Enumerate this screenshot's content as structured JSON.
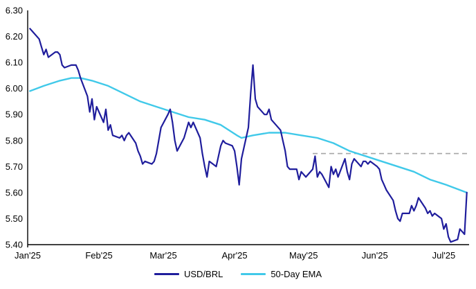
{
  "figure": {
    "background": "#ffffff"
  },
  "chart_data": {
    "type": "line",
    "title": "",
    "xlabel": "",
    "ylabel": "",
    "grid": false,
    "x_axis": {
      "domain": [
        "2025-01-01",
        "2025-07-12"
      ],
      "ticks": [
        {
          "label": "Jan'25",
          "date": "2025-01-01"
        },
        {
          "label": "Feb'25",
          "date": "2025-02-01"
        },
        {
          "label": "Mar'25",
          "date": "2025-03-01"
        },
        {
          "label": "Apr'25",
          "date": "2025-04-01"
        },
        {
          "label": "May'25",
          "date": "2025-05-01"
        },
        {
          "label": "Jun'25",
          "date": "2025-06-01"
        },
        {
          "label": "Jul'25",
          "date": "2025-07-01"
        }
      ]
    },
    "y_axis": {
      "min": 5.4,
      "max": 6.3,
      "step": 0.1,
      "ticks": [
        "6.30",
        "6.20",
        "6.10",
        "6.00",
        "5.90",
        "5.80",
        "5.70",
        "5.60",
        "5.50",
        "5.40"
      ]
    },
    "series": [
      {
        "name": "USD/BRL",
        "color": "#1f1d9c",
        "width": 2.2,
        "points": [
          [
            "2025-01-02",
            6.23
          ],
          [
            "2025-01-03",
            6.22
          ],
          [
            "2025-01-06",
            6.19
          ],
          [
            "2025-01-07",
            6.16
          ],
          [
            "2025-01-08",
            6.13
          ],
          [
            "2025-01-09",
            6.15
          ],
          [
            "2025-01-10",
            6.12
          ],
          [
            "2025-01-13",
            6.14
          ],
          [
            "2025-01-14",
            6.14
          ],
          [
            "2025-01-15",
            6.13
          ],
          [
            "2025-01-16",
            6.09
          ],
          [
            "2025-01-17",
            6.08
          ],
          [
            "2025-01-20",
            6.09
          ],
          [
            "2025-01-21",
            6.09
          ],
          [
            "2025-01-22",
            6.09
          ],
          [
            "2025-01-23",
            6.07
          ],
          [
            "2025-01-24",
            6.04
          ],
          [
            "2025-01-27",
            5.97
          ],
          [
            "2025-01-28",
            5.91
          ],
          [
            "2025-01-29",
            5.96
          ],
          [
            "2025-01-30",
            5.88
          ],
          [
            "2025-01-31",
            5.93
          ],
          [
            "2025-02-03",
            5.87
          ],
          [
            "2025-02-04",
            5.92
          ],
          [
            "2025-02-05",
            5.84
          ],
          [
            "2025-02-06",
            5.86
          ],
          [
            "2025-02-07",
            5.82
          ],
          [
            "2025-02-10",
            5.81
          ],
          [
            "2025-02-11",
            5.82
          ],
          [
            "2025-02-12",
            5.8
          ],
          [
            "2025-02-13",
            5.82
          ],
          [
            "2025-02-14",
            5.83
          ],
          [
            "2025-02-17",
            5.79
          ],
          [
            "2025-02-18",
            5.76
          ],
          [
            "2025-02-19",
            5.74
          ],
          [
            "2025-02-20",
            5.71
          ],
          [
            "2025-02-21",
            5.72
          ],
          [
            "2025-02-24",
            5.71
          ],
          [
            "2025-02-25",
            5.72
          ],
          [
            "2025-02-26",
            5.75
          ],
          [
            "2025-02-27",
            5.8
          ],
          [
            "2025-02-28",
            5.85
          ],
          [
            "2025-03-03",
            5.9
          ],
          [
            "2025-03-04",
            5.92
          ],
          [
            "2025-03-05",
            5.87
          ],
          [
            "2025-03-06",
            5.8
          ],
          [
            "2025-03-07",
            5.76
          ],
          [
            "2025-03-10",
            5.81
          ],
          [
            "2025-03-11",
            5.84
          ],
          [
            "2025-03-12",
            5.87
          ],
          [
            "2025-03-13",
            5.85
          ],
          [
            "2025-03-14",
            5.87
          ],
          [
            "2025-03-17",
            5.81
          ],
          [
            "2025-03-18",
            5.75
          ],
          [
            "2025-03-19",
            5.7
          ],
          [
            "2025-03-20",
            5.66
          ],
          [
            "2025-03-21",
            5.72
          ],
          [
            "2025-03-24",
            5.7
          ],
          [
            "2025-03-25",
            5.74
          ],
          [
            "2025-03-26",
            5.78
          ],
          [
            "2025-03-27",
            5.8
          ],
          [
            "2025-03-28",
            5.79
          ],
          [
            "2025-03-31",
            5.78
          ],
          [
            "2025-04-01",
            5.76
          ],
          [
            "2025-04-02",
            5.7
          ],
          [
            "2025-04-03",
            5.63
          ],
          [
            "2025-04-04",
            5.73
          ],
          [
            "2025-04-07",
            5.85
          ],
          [
            "2025-04-08",
            5.98
          ],
          [
            "2025-04-09",
            6.09
          ],
          [
            "2025-04-10",
            5.96
          ],
          [
            "2025-04-11",
            5.93
          ],
          [
            "2025-04-14",
            5.9
          ],
          [
            "2025-04-15",
            5.9
          ],
          [
            "2025-04-16",
            5.92
          ],
          [
            "2025-04-17",
            5.88
          ],
          [
            "2025-04-21",
            5.84
          ],
          [
            "2025-04-22",
            5.8
          ],
          [
            "2025-04-23",
            5.76
          ],
          [
            "2025-04-24",
            5.7
          ],
          [
            "2025-04-25",
            5.69
          ],
          [
            "2025-04-28",
            5.69
          ],
          [
            "2025-04-29",
            5.65
          ],
          [
            "2025-04-30",
            5.68
          ],
          [
            "2025-05-02",
            5.66
          ],
          [
            "2025-05-05",
            5.69
          ],
          [
            "2025-05-06",
            5.74
          ],
          [
            "2025-05-07",
            5.66
          ],
          [
            "2025-05-08",
            5.68
          ],
          [
            "2025-05-09",
            5.67
          ],
          [
            "2025-05-12",
            5.62
          ],
          [
            "2025-05-13",
            5.7
          ],
          [
            "2025-05-14",
            5.67
          ],
          [
            "2025-05-15",
            5.69
          ],
          [
            "2025-05-16",
            5.66
          ],
          [
            "2025-05-19",
            5.73
          ],
          [
            "2025-05-20",
            5.68
          ],
          [
            "2025-05-21",
            5.65
          ],
          [
            "2025-05-22",
            5.71
          ],
          [
            "2025-05-23",
            5.73
          ],
          [
            "2025-05-26",
            5.7
          ],
          [
            "2025-05-27",
            5.72
          ],
          [
            "2025-05-28",
            5.72
          ],
          [
            "2025-05-29",
            5.71
          ],
          [
            "2025-05-30",
            5.72
          ],
          [
            "2025-06-02",
            5.7
          ],
          [
            "2025-06-03",
            5.69
          ],
          [
            "2025-06-04",
            5.65
          ],
          [
            "2025-06-05",
            5.63
          ],
          [
            "2025-06-06",
            5.61
          ],
          [
            "2025-06-09",
            5.57
          ],
          [
            "2025-06-10",
            5.53
          ],
          [
            "2025-06-11",
            5.5
          ],
          [
            "2025-06-12",
            5.49
          ],
          [
            "2025-06-13",
            5.52
          ],
          [
            "2025-06-16",
            5.52
          ],
          [
            "2025-06-17",
            5.55
          ],
          [
            "2025-06-18",
            5.53
          ],
          [
            "2025-06-19",
            5.55
          ],
          [
            "2025-06-20",
            5.58
          ],
          [
            "2025-06-23",
            5.54
          ],
          [
            "2025-06-24",
            5.52
          ],
          [
            "2025-06-25",
            5.53
          ],
          [
            "2025-06-26",
            5.51
          ],
          [
            "2025-06-27",
            5.52
          ],
          [
            "2025-06-30",
            5.5
          ],
          [
            "2025-07-01",
            5.46
          ],
          [
            "2025-07-02",
            5.48
          ],
          [
            "2025-07-03",
            5.43
          ],
          [
            "2025-07-04",
            5.41
          ],
          [
            "2025-07-07",
            5.42
          ],
          [
            "2025-07-08",
            5.46
          ],
          [
            "2025-07-09",
            5.45
          ],
          [
            "2025-07-10",
            5.44
          ],
          [
            "2025-07-11",
            5.6
          ]
        ]
      },
      {
        "name": "50-Day EMA",
        "color": "#40c9e9",
        "width": 2.4,
        "points": [
          [
            "2025-01-02",
            5.99
          ],
          [
            "2025-01-08",
            6.01
          ],
          [
            "2025-01-15",
            6.03
          ],
          [
            "2025-01-20",
            6.04
          ],
          [
            "2025-01-24",
            6.04
          ],
          [
            "2025-01-29",
            6.03
          ],
          [
            "2025-02-05",
            6.01
          ],
          [
            "2025-02-12",
            5.98
          ],
          [
            "2025-02-19",
            5.95
          ],
          [
            "2025-02-26",
            5.93
          ],
          [
            "2025-03-05",
            5.91
          ],
          [
            "2025-03-12",
            5.89
          ],
          [
            "2025-03-19",
            5.88
          ],
          [
            "2025-03-26",
            5.86
          ],
          [
            "2025-04-02",
            5.82
          ],
          [
            "2025-04-04",
            5.81
          ],
          [
            "2025-04-09",
            5.82
          ],
          [
            "2025-04-16",
            5.83
          ],
          [
            "2025-04-23",
            5.83
          ],
          [
            "2025-04-30",
            5.82
          ],
          [
            "2025-05-07",
            5.81
          ],
          [
            "2025-05-14",
            5.79
          ],
          [
            "2025-05-21",
            5.76
          ],
          [
            "2025-05-28",
            5.74
          ],
          [
            "2025-06-04",
            5.72
          ],
          [
            "2025-06-11",
            5.7
          ],
          [
            "2025-06-18",
            5.68
          ],
          [
            "2025-06-25",
            5.65
          ],
          [
            "2025-07-02",
            5.63
          ],
          [
            "2025-07-08",
            5.61
          ],
          [
            "2025-07-11",
            5.6
          ]
        ]
      }
    ],
    "reference_line": {
      "value": 5.75,
      "color": "#a6a6a6",
      "style": "dashed",
      "from": "2025-05-05",
      "to": "2025-07-12"
    },
    "legend": {
      "position": "bottom"
    }
  }
}
